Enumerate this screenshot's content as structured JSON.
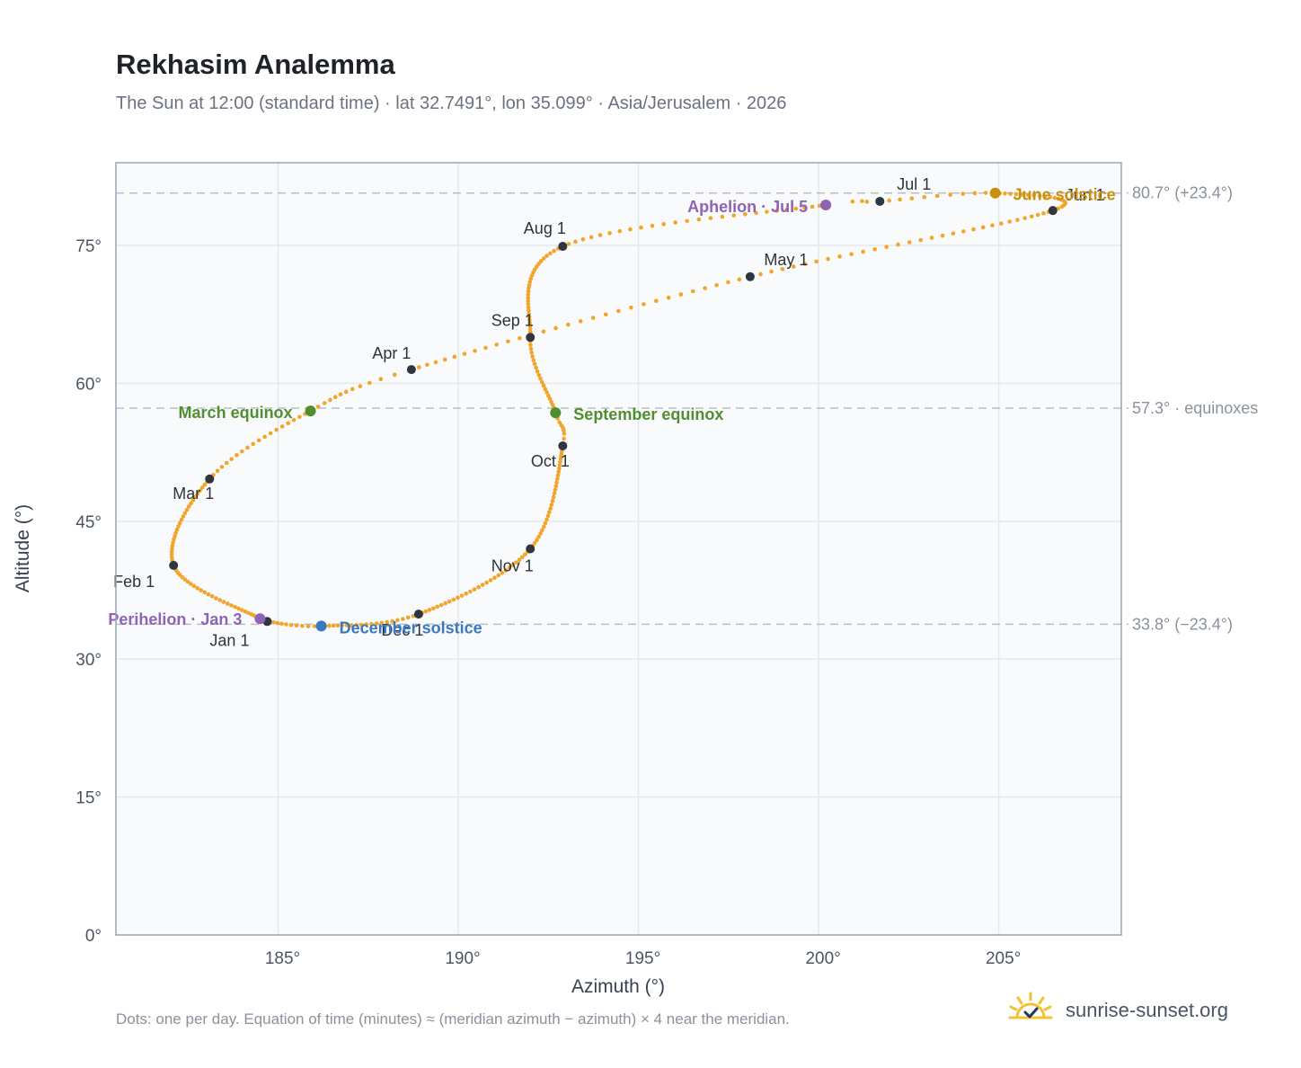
{
  "header": {
    "title": "Rekhasim Analemma",
    "subtitle": "The Sun at 12:00 (standard time) · lat 32.7491°, lon 35.099° · Asia/Jerusalem · 2026"
  },
  "footer": {
    "note": "Dots: one per day. Equation of time (minutes) ≈ (meridian azimuth − azimuth) × 4 near the meridian.",
    "brand": "sunrise-sunset.org",
    "brand_icon": "sun-check-icon"
  },
  "colors": {
    "trace": "#f2a52a",
    "month_point": "#2f3640",
    "perihelion_aphelion": "#8e63b5",
    "equinox": "#4f8f2f",
    "june_solstice": "#c8900f",
    "december_solstice": "#3b78bf",
    "grid": "#e5e8ec",
    "frame": "#9aa5b4",
    "reference_line": "#b8bfc8",
    "plot_bg": "#f8fafc"
  },
  "chart_data": {
    "type": "scatter",
    "title": "Rekhasim Analemma",
    "xlabel": "Azimuth (°)",
    "ylabel": "Altitude (°)",
    "xlim": [
      180.5,
      208.4
    ],
    "ylim": [
      0,
      84
    ],
    "xticks": [
      185,
      190,
      195,
      200,
      205
    ],
    "yticks": [
      0,
      15,
      30,
      45,
      60,
      75
    ],
    "xtick_labels": [
      "185°",
      "190°",
      "195°",
      "200°",
      "205°"
    ],
    "ytick_labels": [
      "0°",
      "15°",
      "30°",
      "45°",
      "60°",
      "75°"
    ],
    "grid": true,
    "reference_lines": [
      {
        "y": 80.7,
        "label": "80.7° (+23.4°)"
      },
      {
        "y": 57.3,
        "label": "57.3° · equinoxes"
      },
      {
        "y": 33.8,
        "label": "33.8° (−23.4°)"
      }
    ],
    "month_points": [
      {
        "label": "Jan 1",
        "doy": 1,
        "az": 184.7,
        "alt": 34.1
      },
      {
        "label": "Feb 1",
        "doy": 32,
        "az": 182.1,
        "alt": 40.2
      },
      {
        "label": "Mar 1",
        "doy": 60,
        "az": 183.1,
        "alt": 49.6
      },
      {
        "label": "Apr 1",
        "doy": 91,
        "az": 188.7,
        "alt": 61.5
      },
      {
        "label": "May 1",
        "doy": 121,
        "az": 198.1,
        "alt": 71.6
      },
      {
        "label": "Jun 1",
        "doy": 152,
        "az": 206.5,
        "alt": 78.8
      },
      {
        "label": "Jul 1",
        "doy": 182,
        "az": 201.7,
        "alt": 79.8
      },
      {
        "label": "Aug 1",
        "doy": 213,
        "az": 192.9,
        "alt": 74.9
      },
      {
        "label": "Sep 1",
        "doy": 244,
        "az": 192.0,
        "alt": 65.0
      },
      {
        "label": "Oct 1",
        "doy": 274,
        "az": 192.9,
        "alt": 53.2
      },
      {
        "label": "Nov 1",
        "doy": 305,
        "az": 192.0,
        "alt": 42.0
      },
      {
        "label": "Dec 1",
        "doy": 335,
        "az": 188.9,
        "alt": 34.9
      }
    ],
    "events": [
      {
        "label": "Perihelion · Jan 3",
        "doy": 3,
        "az": 184.5,
        "alt": 34.4,
        "kind": "perihelion_aphelion"
      },
      {
        "label": "March equinox",
        "doy": 79,
        "az": 185.9,
        "alt": 57.0,
        "kind": "equinox"
      },
      {
        "label": "June solstice",
        "doy": 172,
        "az": 204.9,
        "alt": 80.7,
        "kind": "june_solstice"
      },
      {
        "label": "Aphelion · Jul 5",
        "doy": 186,
        "az": 200.2,
        "alt": 79.4,
        "kind": "perihelion_aphelion"
      },
      {
        "label": "September equinox",
        "doy": 266,
        "az": 192.7,
        "alt": 56.8,
        "kind": "equinox"
      },
      {
        "label": "December solstice",
        "doy": 355,
        "az": 186.2,
        "alt": 33.6,
        "kind": "december_solstice"
      }
    ]
  }
}
